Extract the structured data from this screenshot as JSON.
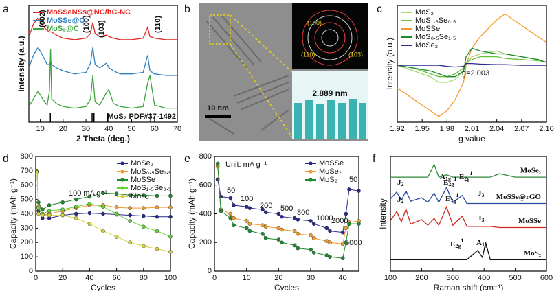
{
  "chart_data": [
    {
      "type": "line",
      "panel": "a",
      "xlabel": "2 Theta (deg.)",
      "ylabel": "Intensity (a.u.)",
      "legend": "upper left",
      "x": [
        5,
        7,
        9,
        11,
        13,
        14,
        14.5,
        15,
        17,
        20,
        25,
        30,
        32,
        33,
        34,
        36,
        39,
        40,
        42,
        45,
        50,
        55,
        57,
        58,
        60,
        65,
        70
      ],
      "series": [
        {
          "name": "MoSSeNSs@NC/hC-NC",
          "color": "#e8231f",
          "values": [
            7.0,
            7.8,
            8.2,
            7.7,
            7.4,
            7.3,
            7.3,
            7.3,
            7.1,
            6.9,
            6.8,
            6.9,
            7.2,
            7.9,
            7.2,
            7.0,
            7.1,
            7.0,
            6.9,
            6.8,
            6.8,
            6.9,
            7.6,
            7.0,
            6.9,
            6.8,
            6.8
          ]
        },
        {
          "name": "MoSSe@C",
          "color": "#2e7fc0",
          "values": [
            5.0,
            5.8,
            6.3,
            5.8,
            5.2,
            5.2,
            5.4,
            5.2,
            5.0,
            4.8,
            4.6,
            4.7,
            5.3,
            6.3,
            5.2,
            5.0,
            5.3,
            5.0,
            4.8,
            4.6,
            4.6,
            4.7,
            5.8,
            4.8,
            4.6,
            4.5,
            4.5
          ]
        },
        {
          "name": "MoS₂@C",
          "color": "#3aa53a",
          "values": [
            2.5,
            3.0,
            3.5,
            3.0,
            2.6,
            3.5,
            6.2,
            3.0,
            2.7,
            2.5,
            2.4,
            2.5,
            3.0,
            4.5,
            2.8,
            2.6,
            3.4,
            3.6,
            2.7,
            2.5,
            2.4,
            2.5,
            4.0,
            4.5,
            2.6,
            2.4,
            2.4
          ]
        }
      ],
      "ref_lines": [
        14.4,
        32.7,
        33.5,
        39.5,
        58.3
      ],
      "annotations": [
        "(002)",
        "(100)",
        "(103)",
        "(110)",
        "MoS₂ PDF#37-1492"
      ],
      "xlim": [
        5,
        70
      ],
      "xticks": [
        10,
        20,
        30,
        40,
        50,
        60,
        70
      ],
      "ylim": [
        1.5,
        9
      ]
    },
    {
      "type": "line",
      "panel": "c",
      "xlabel": "g value",
      "ylabel": "Intensity (a.u.)",
      "legend": "upper left",
      "x": [
        1.92,
        1.94,
        1.96,
        1.97,
        1.98,
        1.99,
        2.0,
        2.003,
        2.01,
        2.02,
        2.04,
        2.05,
        2.07,
        2.09,
        2.1
      ],
      "series": [
        {
          "name": "MoS₂",
          "color": "#a6d96a",
          "values": [
            0,
            -1,
            -2,
            -3,
            -3,
            -2.5,
            -1,
            0,
            1.5,
            2,
            2.5,
            2,
            1.5,
            1,
            0.5
          ]
        },
        {
          "name": "MoS₁.₅Se₀.₅",
          "color": "#66c23a",
          "values": [
            0,
            -0.5,
            -1.5,
            -2,
            -2,
            -1.5,
            -0.5,
            0.5,
            1,
            1.5,
            1.5,
            1.2,
            1,
            0.8,
            0.5
          ]
        },
        {
          "name": "MoSSe",
          "color": "#f39a2c",
          "values": [
            -4,
            -6,
            -8,
            -9,
            -8,
            -6,
            -3,
            0,
            3,
            5,
            8,
            9,
            7,
            5,
            4
          ]
        },
        {
          "name": "MoS₀.₅Se₁.₅",
          "color": "#1e8a2e",
          "values": [
            0,
            -0.5,
            -1,
            -1.5,
            -2,
            -2,
            -1,
            1.5,
            3,
            2.5,
            2,
            2,
            1.5,
            1,
            0.5
          ]
        },
        {
          "name": "MoSe₂",
          "color": "#2a2a8c",
          "values": [
            0,
            0,
            0,
            0,
            -0.2,
            -0.3,
            -0.2,
            0.3,
            0.3,
            0.2,
            0.1,
            0.1,
            0,
            0,
            0
          ]
        }
      ],
      "annotations": [
        "g=2.003"
      ],
      "xlim": [
        1.92,
        2.1
      ],
      "xticks": [
        1.92,
        1.95,
        1.98,
        2.01,
        2.04,
        2.07,
        {
          "value": 2.1,
          "label": "2.10"
        }
      ],
      "ylim": [
        -10,
        10.5
      ]
    },
    {
      "type": "line",
      "panel": "d",
      "xlabel": "Cycles",
      "ylabel": "Capacity (mAh g⁻¹)",
      "legend": "upper right",
      "markers": true,
      "x": [
        1,
        2,
        5,
        10,
        20,
        30,
        40,
        50,
        60,
        70,
        80,
        90,
        100
      ],
      "series": [
        {
          "name": "MoSe₂",
          "color": "#2a2a8c",
          "values": [
            690,
            420,
            370,
            370,
            390,
            400,
            405,
            400,
            395,
            390,
            385,
            380,
            380
          ]
        },
        {
          "name": "MoS₀.₅Se₁.₅",
          "color": "#f39a2c",
          "values": [
            690,
            450,
            390,
            400,
            420,
            440,
            460,
            460,
            445,
            440,
            440,
            445,
            445
          ]
        },
        {
          "name": "MoSSe",
          "color": "#1e8a2e",
          "values": [
            700,
            480,
            430,
            460,
            480,
            500,
            520,
            545,
            540,
            530,
            530,
            525,
            525
          ]
        },
        {
          "name": "MoS₁.₅Se₀.₅",
          "color": "#66d23a",
          "values": [
            700,
            440,
            400,
            420,
            430,
            450,
            470,
            450,
            400,
            350,
            310,
            280,
            240
          ]
        },
        {
          "name": "MoS₂",
          "color": "#d6d23a",
          "values": [
            690,
            400,
            390,
            390,
            390,
            370,
            330,
            280,
            240,
            200,
            175,
            155,
            135
          ]
        }
      ],
      "annotations": [
        "100 mA g⁻¹"
      ],
      "xlim": [
        0,
        100
      ],
      "xticks": [
        0,
        20,
        40,
        60,
        80,
        100
      ],
      "ylim": [
        0,
        800
      ],
      "yticks": [
        0,
        100,
        200,
        300,
        400,
        500,
        600,
        700,
        800
      ]
    },
    {
      "type": "line",
      "panel": "e",
      "xlabel": "Cycles",
      "ylabel": "Capacity (mAh g⁻¹)",
      "legend": "upper right",
      "markers": true,
      "x": [
        1,
        2,
        5,
        6,
        10,
        11,
        15,
        16,
        20,
        21,
        25,
        26,
        30,
        31,
        35,
        36,
        40,
        41,
        42,
        45
      ],
      "series": [
        {
          "name": "MoSSe",
          "color": "#2a2a8c",
          "values": [
            640,
            520,
            510,
            460,
            450,
            440,
            430,
            410,
            400,
            380,
            370,
            360,
            350,
            330,
            300,
            280,
            270,
            400,
            570,
            560
          ]
        },
        {
          "name": "MoSe₂",
          "color": "#f39a2c",
          "values": [
            730,
            430,
            400,
            370,
            350,
            330,
            320,
            310,
            300,
            290,
            280,
            260,
            250,
            230,
            210,
            200,
            190,
            300,
            340,
            350
          ]
        },
        {
          "name": "MoS₂",
          "color": "#1e8a2e",
          "values": [
            750,
            420,
            370,
            320,
            300,
            280,
            260,
            230,
            220,
            200,
            180,
            160,
            150,
            130,
            110,
            100,
            90,
            200,
            330,
            330
          ]
        }
      ],
      "annotations": [
        "Unit: mA g⁻¹",
        "50",
        "100",
        "200",
        "500",
        "800",
        "1000",
        "2000",
        "5000",
        "50"
      ],
      "xlim": [
        0,
        45
      ],
      "xticks": [
        0,
        10,
        20,
        30,
        40
      ],
      "ylim": [
        0,
        800
      ],
      "yticks": [
        0,
        200,
        400,
        600,
        800
      ]
    },
    {
      "type": "line",
      "panel": "f",
      "xlabel": "Raman shift (cm⁻¹)",
      "ylabel": "Intensity",
      "legend": "inline",
      "x": [
        100,
        120,
        135,
        150,
        165,
        200,
        220,
        240,
        255,
        280,
        300,
        330,
        345,
        380,
        395,
        405,
        420,
        450,
        500,
        550,
        600
      ],
      "series": [
        {
          "name": "MoSe₂",
          "color": "#2e8b3a",
          "values": [
            8.2,
            8.2,
            8.2,
            8.2,
            8.2,
            8.2,
            8.2,
            9.3,
            8.2,
            8.4,
            8.2,
            8.2,
            8.2,
            8.2,
            8.2,
            8.2,
            8.2,
            8.5,
            8.2,
            8.2,
            8.2
          ]
        },
        {
          "name": "MoSSe@rGO",
          "color": "#2a4a9c",
          "values": [
            6.3,
            6.9,
            6.2,
            7.0,
            6.1,
            6.4,
            6.0,
            6.8,
            6.0,
            7.3,
            6.0,
            6.6,
            5.9,
            5.9,
            5.9,
            5.9,
            5.9,
            5.9,
            5.9,
            5.9,
            5.9
          ]
        },
        {
          "name": "MoSSe",
          "color": "#d02a20",
          "values": [
            4.4,
            5.2,
            4.3,
            5.4,
            4.1,
            4.5,
            4.0,
            4.6,
            4.0,
            5.6,
            4.0,
            4.8,
            3.9,
            3.9,
            3.9,
            3.9,
            3.9,
            3.8,
            3.8,
            3.8,
            3.8
          ]
        },
        {
          "name": "MoS₂",
          "color": "#111111",
          "values": [
            1.0,
            1.0,
            1.0,
            1.0,
            1.0,
            1.0,
            1.0,
            1.0,
            1.0,
            1.0,
            1.0,
            1.0,
            1.0,
            1.8,
            1.2,
            2.5,
            1.0,
            1.0,
            1.0,
            1.0,
            1.0
          ]
        }
      ],
      "annotations": [
        {
          "main": "A",
          "sub": "1g"
        },
        {
          "main": "E",
          "sub": "2g",
          "sup": "1"
        },
        {
          "main": "J",
          "sub": "2"
        },
        {
          "main": "E",
          "sub": "2g",
          "sup": "1"
        },
        {
          "main": "J",
          "sub": "3"
        },
        {
          "main": "J",
          "sub": "2"
        },
        {
          "main": "E",
          "sub": "2g",
          "sup": "1"
        },
        {
          "main": "J",
          "sub": "3"
        },
        {
          "main": "E",
          "sub": "2g",
          "sup": "1"
        },
        {
          "main": "A",
          "sub": "1g"
        }
      ],
      "xlim": [
        100,
        600
      ],
      "xticks": [
        100,
        200,
        300,
        400,
        500,
        600
      ],
      "ylim": [
        0,
        10
      ]
    }
  ],
  "image_panel": {
    "panel": "b",
    "scale_bar": "10 nm",
    "rings": [
      "(100)",
      "(110)",
      "(103)"
    ],
    "spacing": "2.889 nm"
  }
}
